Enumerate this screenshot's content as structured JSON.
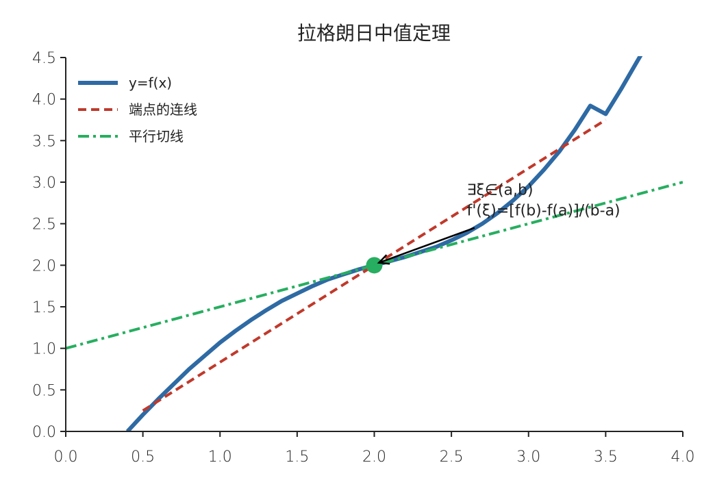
{
  "chart_data": {
    "type": "line",
    "title": "拉格朗日中值定理",
    "xlabel": "",
    "ylabel": "",
    "xlim": [
      0.0,
      4.0
    ],
    "ylim": [
      0.0,
      4.5
    ],
    "x_ticks": [
      "0.0",
      "0.5",
      "1.0",
      "1.5",
      "2.0",
      "2.5",
      "3.0",
      "3.5",
      "4.0"
    ],
    "y_ticks": [
      "0.0",
      "0.5",
      "1.0",
      "1.5",
      "2.0",
      "2.5",
      "3.0",
      "3.5",
      "4.0",
      "4.5"
    ],
    "grid": false,
    "legend_position": "top-left",
    "series": [
      {
        "name": "y=f(x)",
        "style": "solid",
        "color": "#2e6aa4",
        "x": [
          0.4,
          0.5,
          0.6,
          0.7,
          0.8,
          0.9,
          1.0,
          1.1,
          1.2,
          1.3,
          1.4,
          1.5,
          1.6,
          1.7,
          1.8,
          1.9,
          2.0,
          2.1,
          2.2,
          2.3,
          2.4,
          2.5,
          2.6,
          2.7,
          2.8,
          2.9,
          3.0,
          3.1,
          3.2,
          3.3,
          3.4,
          3.5,
          3.6,
          3.7,
          3.75
        ],
        "y": [
          0.0,
          0.2,
          0.39,
          0.57,
          0.75,
          0.91,
          1.07,
          1.21,
          1.34,
          1.46,
          1.57,
          1.66,
          1.75,
          1.83,
          1.89,
          1.95,
          2.0,
          2.05,
          2.1,
          2.16,
          2.22,
          2.3,
          2.39,
          2.5,
          2.63,
          2.78,
          2.95,
          3.15,
          3.37,
          3.63,
          3.92,
          3.82,
          4.12,
          4.44,
          4.6
        ]
      },
      {
        "name": "端点的连线",
        "style": "dashed",
        "color": "#c0392b",
        "x": [
          0.5,
          3.5
        ],
        "y": [
          0.25,
          3.75
        ]
      },
      {
        "name": "平行切线",
        "style": "dashdot",
        "color": "#27ae60",
        "x": [
          0.0,
          4.0
        ],
        "y": [
          1.0,
          3.0
        ]
      }
    ],
    "point": {
      "x": 2.0,
      "y": 2.0,
      "color": "#27ae60"
    },
    "annotation": {
      "line1": "∃ξ∈(a,b)",
      "line2": "f'(ξ)=[f(b)-f(a)]/(b-a)",
      "text_x": 2.6,
      "text_y": 2.45,
      "arrow_to": [
        2.03,
        2.03
      ]
    }
  }
}
